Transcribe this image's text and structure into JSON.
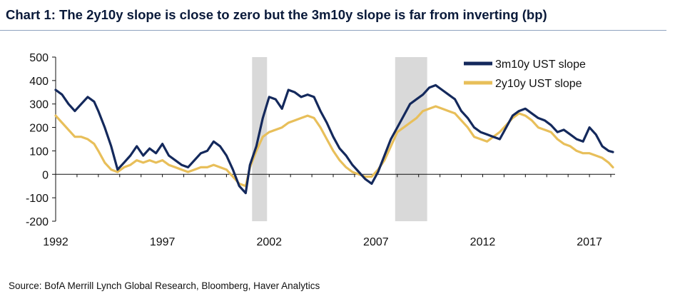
{
  "title": "Chart 1: The 2y10y slope is close to zero but the 3m10y slope is far from inverting (bp)",
  "source": "Source: BofA Merrill Lynch Global Research, Bloomberg, Haver Analytics",
  "chart_data": {
    "type": "line",
    "title": "Chart 1: The 2y10y slope is close to zero but the 3m10y slope is far from inverting (bp)",
    "xlabel": "",
    "ylabel": "",
    "xlim": [
      1992.0,
      2018.2
    ],
    "ylim": [
      -200,
      500
    ],
    "yticks": [
      500,
      400,
      300,
      200,
      100,
      0,
      -100,
      -200
    ],
    "xticks": [
      1992,
      1997,
      2002,
      2007,
      2012,
      2017
    ],
    "legend_position": "top-right",
    "grid": false,
    "recessions": [
      [
        2001.2,
        2001.9
      ],
      [
        2007.9,
        2009.4
      ]
    ],
    "series": [
      {
        "name": "3m10y UST slope",
        "color": "#14295c",
        "x": [
          1992.0,
          1992.3,
          1992.6,
          1992.9,
          1993.2,
          1993.5,
          1993.8,
          1994.0,
          1994.3,
          1994.6,
          1994.9,
          1995.2,
          1995.5,
          1995.8,
          1996.1,
          1996.4,
          1996.7,
          1997.0,
          1997.3,
          1997.6,
          1997.9,
          1998.2,
          1998.5,
          1998.8,
          1999.1,
          1999.4,
          1999.7,
          2000.0,
          2000.3,
          2000.6,
          2000.9,
          2001.1,
          2001.4,
          2001.7,
          2002.0,
          2002.3,
          2002.6,
          2002.9,
          2003.2,
          2003.5,
          2003.8,
          2004.1,
          2004.4,
          2004.7,
          2005.0,
          2005.3,
          2005.6,
          2005.9,
          2006.2,
          2006.5,
          2006.8,
          2007.1,
          2007.4,
          2007.7,
          2008.0,
          2008.3,
          2008.6,
          2008.9,
          2009.2,
          2009.5,
          2009.8,
          2010.1,
          2010.4,
          2010.7,
          2011.0,
          2011.3,
          2011.6,
          2011.9,
          2012.2,
          2012.5,
          2012.8,
          2013.1,
          2013.4,
          2013.7,
          2014.0,
          2014.3,
          2014.6,
          2014.9,
          2015.2,
          2015.5,
          2015.8,
          2016.1,
          2016.4,
          2016.7,
          2017.0,
          2017.3,
          2017.6,
          2017.9,
          2018.1
        ],
        "values": [
          360,
          340,
          300,
          270,
          300,
          330,
          310,
          270,
          200,
          120,
          20,
          50,
          80,
          120,
          80,
          110,
          90,
          130,
          80,
          60,
          40,
          30,
          60,
          90,
          100,
          140,
          120,
          80,
          20,
          -50,
          -80,
          40,
          120,
          240,
          330,
          320,
          280,
          360,
          350,
          330,
          340,
          330,
          270,
          220,
          160,
          110,
          80,
          40,
          10,
          -20,
          -40,
          10,
          80,
          150,
          200,
          250,
          300,
          320,
          340,
          370,
          380,
          360,
          340,
          320,
          270,
          240,
          200,
          180,
          170,
          160,
          150,
          200,
          250,
          270,
          280,
          260,
          240,
          230,
          210,
          180,
          190,
          170,
          150,
          140,
          200,
          170,
          120,
          100,
          95
        ]
      },
      {
        "name": "2y10y UST slope",
        "color": "#e8bf5a",
        "x": [
          1992.0,
          1992.3,
          1992.6,
          1992.9,
          1993.2,
          1993.5,
          1993.8,
          1994.0,
          1994.3,
          1994.6,
          1994.9,
          1995.2,
          1995.5,
          1995.8,
          1996.1,
          1996.4,
          1996.7,
          1997.0,
          1997.3,
          1997.6,
          1997.9,
          1998.2,
          1998.5,
          1998.8,
          1999.1,
          1999.4,
          1999.7,
          2000.0,
          2000.3,
          2000.6,
          2000.9,
          2001.1,
          2001.4,
          2001.7,
          2002.0,
          2002.3,
          2002.6,
          2002.9,
          2003.2,
          2003.5,
          2003.8,
          2004.1,
          2004.4,
          2004.7,
          2005.0,
          2005.3,
          2005.6,
          2005.9,
          2006.2,
          2006.5,
          2006.8,
          2007.1,
          2007.4,
          2007.7,
          2008.0,
          2008.3,
          2008.6,
          2008.9,
          2009.2,
          2009.5,
          2009.8,
          2010.1,
          2010.4,
          2010.7,
          2011.0,
          2011.3,
          2011.6,
          2011.9,
          2012.2,
          2012.5,
          2012.8,
          2013.1,
          2013.4,
          2013.7,
          2014.0,
          2014.3,
          2014.6,
          2014.9,
          2015.2,
          2015.5,
          2015.8,
          2016.1,
          2016.4,
          2016.7,
          2017.0,
          2017.3,
          2017.6,
          2017.9,
          2018.1
        ],
        "values": [
          250,
          220,
          190,
          160,
          160,
          150,
          130,
          100,
          50,
          20,
          10,
          30,
          40,
          60,
          50,
          60,
          50,
          60,
          40,
          30,
          20,
          10,
          20,
          30,
          30,
          40,
          30,
          20,
          -10,
          -40,
          -50,
          30,
          100,
          160,
          180,
          190,
          200,
          220,
          230,
          240,
          250,
          240,
          200,
          150,
          100,
          60,
          30,
          10,
          0,
          -10,
          -10,
          20,
          60,
          120,
          180,
          200,
          220,
          240,
          270,
          280,
          290,
          280,
          270,
          260,
          230,
          200,
          160,
          150,
          140,
          160,
          180,
          210,
          240,
          260,
          250,
          230,
          200,
          190,
          180,
          150,
          130,
          120,
          100,
          90,
          90,
          80,
          70,
          50,
          30
        ]
      }
    ]
  }
}
